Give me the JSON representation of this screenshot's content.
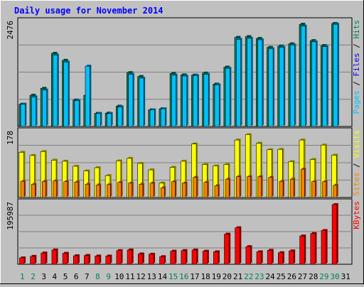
{
  "chart_data": {
    "type": "bar",
    "title": "Daily usage for November 2014",
    "categories": [
      "1",
      "2",
      "3",
      "4",
      "5",
      "6",
      "7",
      "8",
      "9",
      "10",
      "11",
      "12",
      "13",
      "14",
      "15",
      "16",
      "17",
      "18",
      "19",
      "20",
      "21",
      "22",
      "23",
      "24",
      "25",
      "26",
      "27",
      "28",
      "29",
      "30",
      "31"
    ],
    "weekend_days": [
      "1",
      "2",
      "8",
      "9",
      "15",
      "16",
      "22",
      "23",
      "29",
      "30"
    ],
    "panels": [
      {
        "id": "hits",
        "ylabel_parts": [
          "Pages",
          "Files",
          "Hits"
        ],
        "ymax_label": "2476",
        "ymax": 2476,
        "gridlines": 3,
        "series": [
          {
            "name": "Hits",
            "color": "#00805c",
            "values": [
              535,
              750,
              917,
              1758,
              1590,
              636,
              749,
              315,
              321,
              488,
              1294,
              1201,
              400,
              425,
              1275,
              1242,
              1236,
              1283,
              1019,
              1427,
              2141,
              2160,
              2116,
              1901,
              1932,
              1987,
              2456,
              2064,
              1946,
              2476,
              0
            ]
          },
          {
            "name": "Files",
            "color": "#00c0ff",
            "values": [
              535,
              710,
              876,
              1717,
              1548,
              623,
              1450,
              315,
              310,
              469,
              1254,
              1162,
              400,
              425,
              1237,
              1213,
              1224,
              1253,
              1001,
              1397,
              2095,
              2120,
              2084,
              1867,
              1906,
              1960,
              2413,
              2035,
              1918,
              2457,
              0
            ]
          },
          {
            "name": "Pages",
            "color": "#00c0ff",
            "values": [
              0,
              0,
              0,
              0,
              0,
              0,
              0,
              0,
              0,
              0,
              0,
              0,
              0,
              0,
              0,
              0,
              0,
              0,
              0,
              0,
              0,
              0,
              0,
              0,
              0,
              0,
              0,
              0,
              0,
              0,
              0
            ]
          }
        ]
      },
      {
        "id": "visits",
        "ylabel_parts": [
          "Sites",
          "Visits"
        ],
        "ymax_label": "178",
        "ymax": 178,
        "gridlines": 3,
        "series": [
          {
            "name": "Visits",
            "color": "#ffff00",
            "values": [
              126,
              117,
              128,
              104,
              101,
              87,
              74,
              83,
              61,
              102,
              109,
              95,
              77,
              40,
              84,
              101,
              149,
              92,
              88,
              92,
              160,
              175,
              151,
              133,
              134,
              100,
              160,
              106,
              146,
              118,
              0
            ]
          },
          {
            "name": "Sites",
            "color": "#ff8000",
            "values": [
              45,
              37,
              45,
              46,
              44,
              43,
              37,
              35,
              36,
              42,
              40,
              37,
              40,
              27,
              44,
              40,
              56,
              42,
              33,
              51,
              58,
              58,
              58,
              56,
              45,
              51,
              79,
              44,
              44,
              34,
              0
            ]
          }
        ]
      },
      {
        "id": "kbytes",
        "ylabel_parts": [
          "KBytes"
        ],
        "ymax_label": "195987",
        "ymax": 195987,
        "gridlines": 3,
        "series": [
          {
            "name": "KBytes",
            "color": "#ff0000",
            "values": [
              21000,
              26000,
              37000,
              47000,
              36000,
              28000,
              29000,
              27000,
              27000,
              45000,
              47000,
              34000,
              33000,
              25000,
              43000,
              45000,
              47000,
              43000,
              41000,
              99000,
              120000,
              58000,
              41000,
              46000,
              38000,
              44000,
              93000,
              101000,
              111000,
              195987,
              0
            ]
          }
        ]
      }
    ]
  }
}
